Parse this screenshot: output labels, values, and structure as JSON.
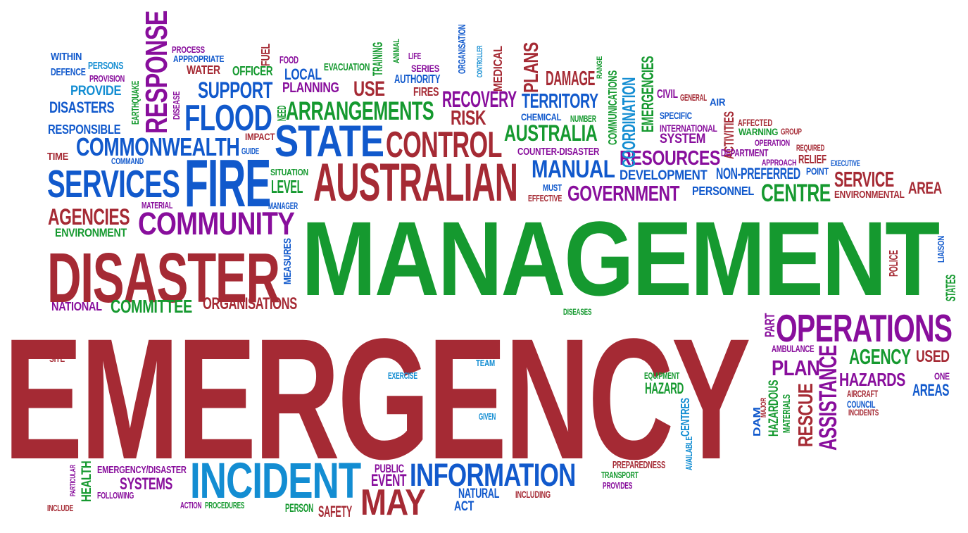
{
  "colors": {
    "red": "#a52a34",
    "green": "#15992f",
    "purple": "#880e9c",
    "blue": "#1159cc",
    "lightblue": "#138dd2"
  },
  "words": [
    {
      "t": "EMERGENCY",
      "c": "red"
    },
    {
      "t": "MANAGEMENT",
      "c": "green"
    },
    {
      "t": "DISASTER",
      "c": "red"
    },
    {
      "t": "AUSTRALIAN",
      "c": "red"
    },
    {
      "t": "FIRE",
      "c": "blue"
    },
    {
      "t": "SERVICES",
      "c": "blue"
    },
    {
      "t": "STATE",
      "c": "blue"
    },
    {
      "t": "CONTROL",
      "c": "red"
    },
    {
      "t": "FLOOD",
      "c": "blue"
    },
    {
      "t": "COMMUNITY",
      "c": "purple"
    },
    {
      "t": "COMMONWEALTH",
      "c": "blue"
    },
    {
      "t": "AGENCIES",
      "c": "red"
    },
    {
      "t": "ENVIRONMENT",
      "c": "green"
    },
    {
      "t": "RESPONSE",
      "c": "purple"
    },
    {
      "t": "ARRANGEMENTS",
      "c": "green"
    },
    {
      "t": "SUPPORT",
      "c": "blue"
    },
    {
      "t": "AUSTRALIA",
      "c": "green"
    },
    {
      "t": "RECOVERY",
      "c": "purple"
    },
    {
      "t": "RISK",
      "c": "red"
    },
    {
      "t": "TERRITORY",
      "c": "blue"
    },
    {
      "t": "MANUAL",
      "c": "blue"
    },
    {
      "t": "GOVERNMENT",
      "c": "purple"
    },
    {
      "t": "RESOURCES",
      "c": "purple"
    },
    {
      "t": "CENTRE",
      "c": "green"
    },
    {
      "t": "SERVICE",
      "c": "red"
    },
    {
      "t": "AREA",
      "c": "red"
    },
    {
      "t": "OPERATIONS",
      "c": "purple"
    },
    {
      "t": "AGENCY",
      "c": "green"
    },
    {
      "t": "USED",
      "c": "red"
    },
    {
      "t": "PLAN",
      "c": "purple"
    },
    {
      "t": "HAZARDS",
      "c": "purple"
    },
    {
      "t": "AREAS",
      "c": "blue"
    },
    {
      "t": "INCIDENT",
      "c": "lightblue"
    },
    {
      "t": "INFORMATION",
      "c": "blue"
    },
    {
      "t": "MAY",
      "c": "red"
    },
    {
      "t": "COMMITTEE",
      "c": "green"
    },
    {
      "t": "ORGANISATIONS",
      "c": "red"
    },
    {
      "t": "NATIONAL",
      "c": "purple"
    },
    {
      "t": "WITHIN",
      "c": "blue"
    },
    {
      "t": "DEFENCE",
      "c": "blue"
    },
    {
      "t": "PERSONS",
      "c": "lightblue"
    },
    {
      "t": "PROVISION",
      "c": "purple"
    },
    {
      "t": "PROVIDE",
      "c": "lightblue"
    },
    {
      "t": "DISASTERS",
      "c": "blue"
    },
    {
      "t": "RESPONSIBLE",
      "c": "blue"
    },
    {
      "t": "TIME",
      "c": "red"
    },
    {
      "t": "COMMAND",
      "c": "blue"
    },
    {
      "t": "PROCESS",
      "c": "purple"
    },
    {
      "t": "APPROPRIATE",
      "c": "blue"
    },
    {
      "t": "WATER",
      "c": "red"
    },
    {
      "t": "FUEL",
      "c": "red"
    },
    {
      "t": "FOOD",
      "c": "purple"
    },
    {
      "t": "OFFICER",
      "c": "green"
    },
    {
      "t": "LOCAL",
      "c": "blue"
    },
    {
      "t": "EVACUATION",
      "c": "green"
    },
    {
      "t": "PLANNING",
      "c": "purple"
    },
    {
      "t": "USE",
      "c": "red"
    },
    {
      "t": "TRAINING",
      "c": "green"
    },
    {
      "t": "ANIMAL",
      "c": "green"
    },
    {
      "t": "LIFE",
      "c": "purple"
    },
    {
      "t": "SERIES",
      "c": "purple"
    },
    {
      "t": "AUTHORITY",
      "c": "blue"
    },
    {
      "t": "FIRES",
      "c": "red"
    },
    {
      "t": "ORGANISATION",
      "c": "blue"
    },
    {
      "t": "CONTROLLER",
      "c": "lightblue"
    },
    {
      "t": "MEDICAL",
      "c": "red"
    },
    {
      "t": "PLANS",
      "c": "red"
    },
    {
      "t": "DAMAGE",
      "c": "red"
    },
    {
      "t": "RANGE",
      "c": "green"
    },
    {
      "t": "COMMUNICATIONS",
      "c": "green"
    },
    {
      "t": "COORDINATION",
      "c": "lightblue"
    },
    {
      "t": "EMERGENCIES",
      "c": "green"
    },
    {
      "t": "CIVIL",
      "c": "purple"
    },
    {
      "t": "GENERAL",
      "c": "red"
    },
    {
      "t": "AIR",
      "c": "blue"
    },
    {
      "t": "SPECIFIC",
      "c": "blue"
    },
    {
      "t": "INTERNATIONAL",
      "c": "purple"
    },
    {
      "t": "SYSTEM",
      "c": "purple"
    },
    {
      "t": "ACTIVITIES",
      "c": "red"
    },
    {
      "t": "AFFECTED",
      "c": "red"
    },
    {
      "t": "WARNING",
      "c": "green"
    },
    {
      "t": "GROUP",
      "c": "red"
    },
    {
      "t": "OPERATION",
      "c": "purple"
    },
    {
      "t": "REQUIRED",
      "c": "red"
    },
    {
      "t": "DEPARTMENT",
      "c": "purple"
    },
    {
      "t": "APPROACH",
      "c": "purple"
    },
    {
      "t": "RELIEF",
      "c": "red"
    },
    {
      "t": "EXECUTIVE",
      "c": "blue"
    },
    {
      "t": "POINT",
      "c": "blue"
    },
    {
      "t": "NON-PREFERRED",
      "c": "blue"
    },
    {
      "t": "DEVELOPMENT",
      "c": "blue"
    },
    {
      "t": "ENVIRONMENTAL",
      "c": "red"
    },
    {
      "t": "PERSONNEL",
      "c": "blue"
    },
    {
      "t": "CHEMICAL",
      "c": "blue"
    },
    {
      "t": "NUMBER",
      "c": "green"
    },
    {
      "t": "COUNTER-DISASTER",
      "c": "purple"
    },
    {
      "t": "MUST",
      "c": "blue"
    },
    {
      "t": "EFFECTIVE",
      "c": "red"
    },
    {
      "t": "SITUATION",
      "c": "green"
    },
    {
      "t": "LEVEL",
      "c": "green"
    },
    {
      "t": "MANAGER",
      "c": "blue"
    },
    {
      "t": "MATERIAL",
      "c": "purple"
    },
    {
      "t": "GUIDE",
      "c": "blue"
    },
    {
      "t": "IMPACT",
      "c": "red"
    },
    {
      "t": "NEED",
      "c": "green"
    },
    {
      "t": "EARTHQUAKE",
      "c": "green"
    },
    {
      "t": "DISEASE",
      "c": "purple"
    },
    {
      "t": "MEASURES",
      "c": "blue"
    },
    {
      "t": "POLICE",
      "c": "red"
    },
    {
      "t": "LIAISON",
      "c": "blue"
    },
    {
      "t": "STATES",
      "c": "green"
    },
    {
      "t": "DISEASES",
      "c": "green"
    },
    {
      "t": "PART",
      "c": "purple"
    },
    {
      "t": "AMBULANCE",
      "c": "purple"
    },
    {
      "t": "ASSISTANCE",
      "c": "purple"
    },
    {
      "t": "RESCUE",
      "c": "red"
    },
    {
      "t": "HAZARDOUS",
      "c": "green"
    },
    {
      "t": "MATERIALS",
      "c": "green"
    },
    {
      "t": "DAM",
      "c": "blue"
    },
    {
      "t": "MAJOR",
      "c": "red"
    },
    {
      "t": "ONE",
      "c": "purple"
    },
    {
      "t": "AIRCRAFT",
      "c": "red"
    },
    {
      "t": "COUNCIL",
      "c": "blue"
    },
    {
      "t": "INCIDENTS",
      "c": "red"
    },
    {
      "t": "HAZARD",
      "c": "green"
    },
    {
      "t": "EQUIPMENT",
      "c": "green"
    },
    {
      "t": "CENTRES",
      "c": "lightblue"
    },
    {
      "t": "AVAILABLE",
      "c": "lightblue"
    },
    {
      "t": "PREPAREDNESS",
      "c": "red"
    },
    {
      "t": "TRANSPORT",
      "c": "green"
    },
    {
      "t": "PROVIDES",
      "c": "purple"
    },
    {
      "t": "INCLUDING",
      "c": "red"
    },
    {
      "t": "NATURAL",
      "c": "blue"
    },
    {
      "t": "ACT",
      "c": "blue"
    },
    {
      "t": "PUBLIC",
      "c": "purple"
    },
    {
      "t": "EVENT",
      "c": "purple"
    },
    {
      "t": "SAFETY",
      "c": "red"
    },
    {
      "t": "PERSON",
      "c": "green"
    },
    {
      "t": "ACTION",
      "c": "purple"
    },
    {
      "t": "PROCEDURES",
      "c": "green"
    },
    {
      "t": "EMERGENCY/DISASTER",
      "c": "purple"
    },
    {
      "t": "SYSTEMS",
      "c": "purple"
    },
    {
      "t": "FOLLOWING",
      "c": "purple"
    },
    {
      "t": "HEALTH",
      "c": "green"
    },
    {
      "t": "PARTICULAR",
      "c": "purple"
    },
    {
      "t": "INCLUDE",
      "c": "red"
    },
    {
      "t": "SITE",
      "c": "red"
    },
    {
      "t": "EXERCISE",
      "c": "lightblue"
    },
    {
      "t": "TEAM",
      "c": "lightblue"
    },
    {
      "t": "GIVEN",
      "c": "lightblue"
    }
  ]
}
